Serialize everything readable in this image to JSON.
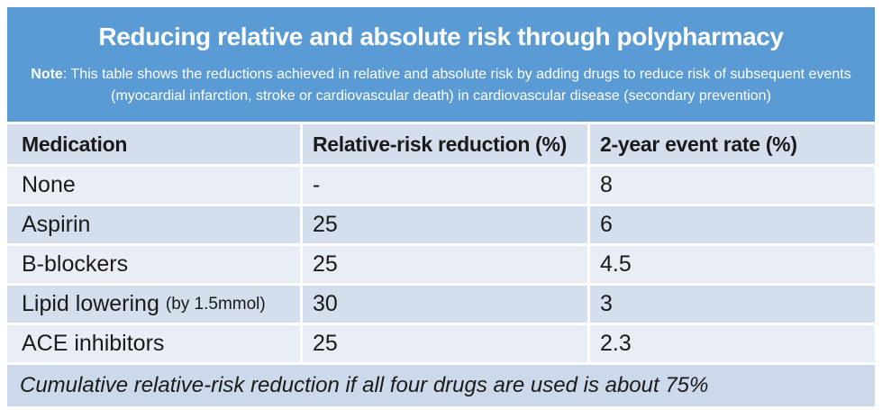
{
  "banner": {
    "title": "Reducing relative and absolute risk through polypharmacy",
    "note_label": "Note",
    "note_body": ": This table shows the reductions achieved in relative and absolute risk by adding drugs to reduce risk of subsequent events (myocardial infarction, stroke or cardiovascular death) in cardiovascular disease (secondary prevention)"
  },
  "table": {
    "columns": [
      "Medication",
      "Relative-risk reduction (%)",
      "2-year event rate (%)"
    ],
    "rows": [
      {
        "medication": "None",
        "medication_note": "",
        "relative_risk_reduction": "-",
        "event_rate": "8"
      },
      {
        "medication": "Aspirin",
        "medication_note": "",
        "relative_risk_reduction": "25",
        "event_rate": "6"
      },
      {
        "medication": "B-blockers",
        "medication_note": "",
        "relative_risk_reduction": "25",
        "event_rate": "4.5"
      },
      {
        "medication": "Lipid lowering",
        "medication_note": "(by 1.5mmol)",
        "relative_risk_reduction": "30",
        "event_rate": "3"
      },
      {
        "medication": "ACE inhibitors",
        "medication_note": "",
        "relative_risk_reduction": "25",
        "event_rate": "2.3"
      }
    ],
    "footer_note": "Cumulative relative-risk reduction if all four drugs are used is about 75%"
  },
  "chart_data": {
    "type": "table",
    "title": "Reducing relative and absolute risk through polypharmacy",
    "columns": [
      "Medication",
      "Relative-risk reduction (%)",
      "2-year event rate (%)"
    ],
    "rows": [
      [
        "None",
        "-",
        8
      ],
      [
        "Aspirin",
        25,
        6
      ],
      [
        "B-blockers",
        25,
        4.5
      ],
      [
        "Lipid lowering (by 1.5mmol)",
        30,
        3
      ],
      [
        "ACE inhibitors",
        25,
        2.3
      ]
    ],
    "footnote": "Cumulative relative-risk reduction if all four drugs are used is about 75%"
  },
  "colors": {
    "banner_bg": "#5b9bd5",
    "banner_text": "#ffffff",
    "header_row_bg": "#d4deed",
    "row_light_bg": "#e9eef6",
    "row_dark_bg": "#d4deed",
    "footer_row_bg": "#ccd9ea",
    "body_text": "#1a1a1a"
  }
}
